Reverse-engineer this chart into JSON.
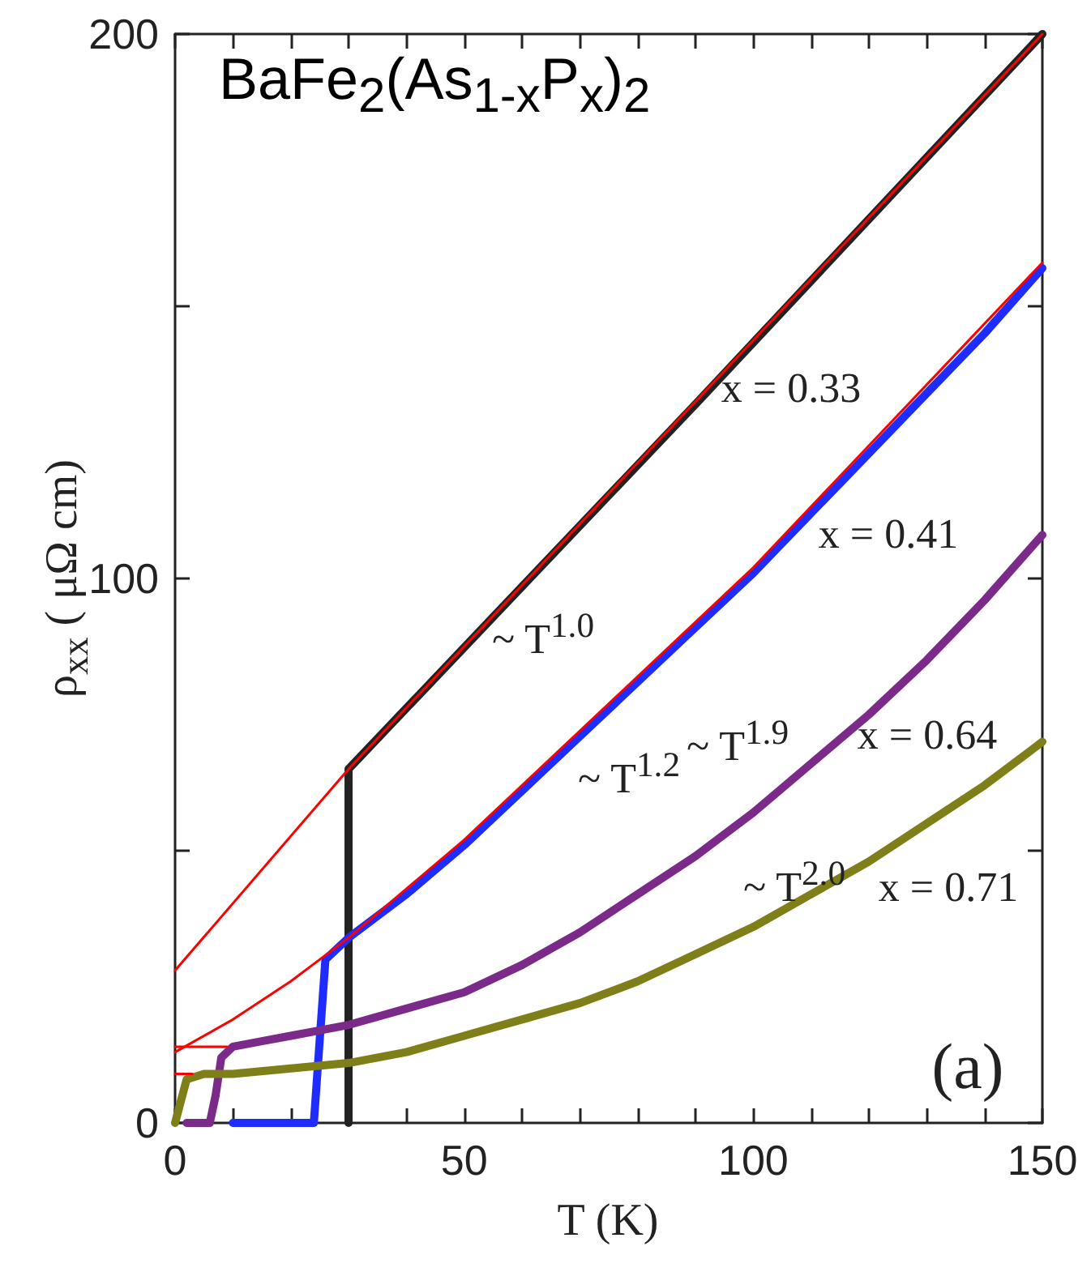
{
  "chart_data": {
    "type": "line",
    "title": "BaFe$_{2}$(As$_{1-x}$P$_{x}$)$_{2}$",
    "xlabel": "T (K)",
    "ylabel": "ρ$_{xx}$ ( μΩ cm)",
    "xlim": [
      0,
      150
    ],
    "ylim": [
      0,
      200
    ],
    "xticks": [
      0,
      {
        "value": 10,
        "label": null
      },
      {
        "value": 20,
        "label": null
      },
      {
        "value": 30,
        "label": null
      },
      {
        "value": 40,
        "label": null
      },
      50,
      {
        "value": 60,
        "label": null
      },
      {
        "value": 70,
        "label": null
      },
      {
        "value": 80,
        "label": null
      },
      {
        "value": 90,
        "label": null
      },
      100,
      {
        "value": 110,
        "label": null
      },
      {
        "value": 120,
        "label": null
      },
      {
        "value": 130,
        "label": null
      },
      {
        "value": 140,
        "label": null
      },
      150
    ],
    "yticks": [
      0,
      {
        "value": 50,
        "label": null
      },
      100,
      {
        "value": 150,
        "label": null
      },
      200
    ],
    "grid": false,
    "marker": "none",
    "line_style": "solid",
    "series": [
      {
        "color": "#ff0000",
        "x": [
          0,
          30,
          150
        ],
        "values": [
          28,
          65,
          200
        ]
      },
      {
        "color": "#ff0000",
        "x": [
          0,
          10,
          20,
          25,
          30,
          50,
          100,
          150
        ],
        "values": [
          13,
          19,
          26,
          30,
          34,
          52,
          102,
          158
        ]
      },
      {
        "color": "#ff0000",
        "x": [
          0,
          9
        ],
        "values": [
          14,
          14
        ]
      },
      {
        "color": "#ff0000",
        "x": [
          0,
          3
        ],
        "values": [
          9,
          9
        ]
      },
      {
        "color": "#222222",
        "x": [
          30,
          30,
          90,
          150
        ],
        "values": [
          0,
          65,
          132,
          200
        ]
      },
      {
        "color": "#1f2cff",
        "x": [
          10,
          24,
          25,
          26,
          30,
          40,
          50,
          60,
          70,
          80,
          90,
          100,
          110,
          120,
          130,
          140,
          150
        ],
        "values": [
          0,
          0,
          15,
          30,
          34,
          42,
          51,
          61,
          71,
          81,
          91,
          101,
          112,
          123,
          134,
          145,
          157
        ]
      },
      {
        "color": "#7b2a8a",
        "x": [
          2,
          6,
          7,
          8,
          10,
          15,
          20,
          30,
          40,
          50,
          60,
          70,
          80,
          90,
          100,
          110,
          120,
          130,
          140,
          150
        ],
        "values": [
          0,
          0,
          5,
          12,
          14,
          15,
          16,
          18,
          21,
          24,
          29,
          35,
          42,
          49,
          57,
          66,
          75,
          85,
          96,
          108
        ]
      },
      {
        "color": "#7f7f1a",
        "x": [
          0,
          1,
          2,
          5,
          10,
          20,
          30,
          40,
          50,
          60,
          70,
          80,
          90,
          100,
          110,
          120,
          130,
          140,
          150
        ],
        "values": [
          0,
          4,
          8,
          9,
          9,
          10,
          11,
          13,
          16,
          19,
          22,
          26,
          31,
          36,
          42,
          48,
          55,
          62,
          70
        ]
      }
    ],
    "annotations": [
      "x = 0.33",
      "x = 0.41",
      "x = 0.64",
      "x = 0.71",
      "~ T$^{1.0}$",
      "~ T$^{1.2}$",
      "~ T$^{1.9}$",
      "~ T$^{2.0}$",
      "(a)"
    ]
  }
}
